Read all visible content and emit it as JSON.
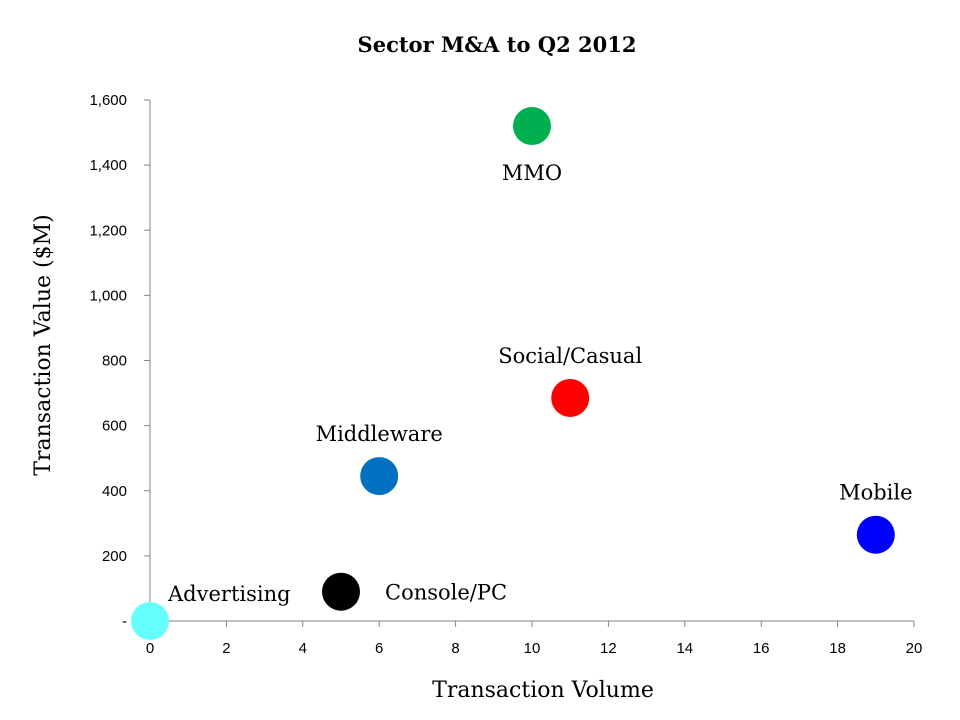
{
  "chart_data": {
    "type": "scatter",
    "title": "Sector M&A to Q2 2012",
    "xlabel": "Transaction Volume",
    "ylabel": "Transaction Value ($M)",
    "xlim": [
      0,
      20
    ],
    "ylim": [
      0,
      1600
    ],
    "x_ticks": [
      0,
      2,
      4,
      6,
      8,
      10,
      12,
      14,
      16,
      18,
      20
    ],
    "y_ticks": [
      0,
      200,
      400,
      600,
      800,
      1000,
      1200,
      1400,
      1600
    ],
    "y_tick_labels": [
      "-",
      "200",
      "400",
      "600",
      "800",
      "1,000",
      "1,200",
      "1,400",
      "1,600"
    ],
    "grid": false,
    "points": [
      {
        "label": "Advertising",
        "x": 0,
        "y": 0,
        "color": "#66ffff",
        "label_pos": "right"
      },
      {
        "label": "Console/PC",
        "x": 5,
        "y": 90,
        "color": "#000000",
        "label_pos": "right"
      },
      {
        "label": "Middleware",
        "x": 6,
        "y": 445,
        "color": "#0070c0",
        "label_pos": "above"
      },
      {
        "label": "MMO",
        "x": 10,
        "y": 1520,
        "color": "#00b050",
        "label_pos": "below"
      },
      {
        "label": "Social/Casual",
        "x": 11,
        "y": 685,
        "color": "#ff0000",
        "label_pos": "above"
      },
      {
        "label": "Mobile",
        "x": 19,
        "y": 265,
        "color": "#0000ff",
        "label_pos": "above"
      }
    ]
  }
}
